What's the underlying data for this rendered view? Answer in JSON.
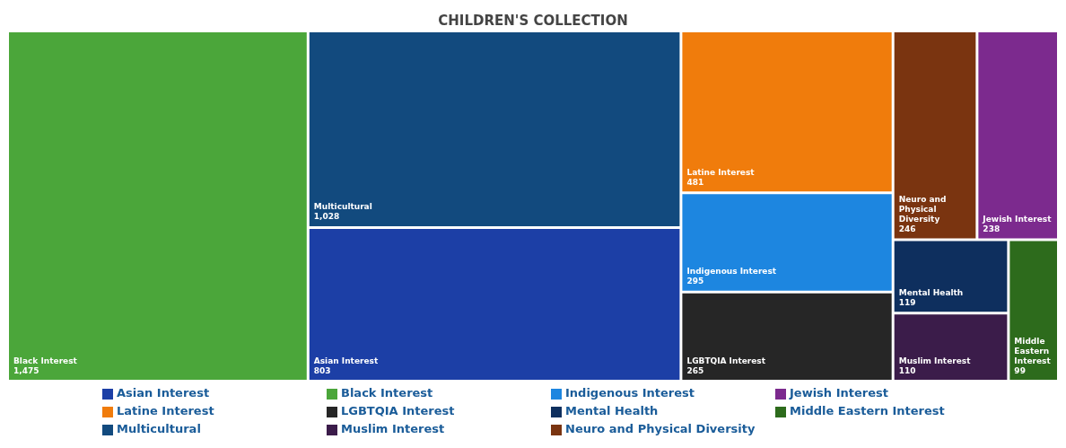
{
  "chart_data": {
    "type": "other",
    "title": "CHILDREN'S COLLECTION",
    "categories": [
      "Asian Interest",
      "Black Interest",
      "Indigenous Interest",
      "Jewish Interest",
      "Latine Interest",
      "LGBTQIA Interest",
      "Mental Health",
      "Middle Eastern Interest",
      "Multicultural",
      "Muslim Interest",
      "Neuro and Physical Diversity"
    ],
    "values": [
      803,
      1475,
      295,
      238,
      481,
      265,
      119,
      99,
      1028,
      110,
      246
    ],
    "value_labels": [
      "803",
      "1,475",
      "295",
      "238",
      "481",
      "265",
      "119",
      "99",
      "1,028",
      "110",
      "246"
    ],
    "colors": [
      "#1c3fa6",
      "#4ba63a",
      "#1d86e0",
      "#7c2a8e",
      "#f07c0c",
      "#262626",
      "#0e2f5e",
      "#2d6b1c",
      "#124a7e",
      "#3b1c4a",
      "#7a3410"
    ],
    "data_labels": true
  }
}
